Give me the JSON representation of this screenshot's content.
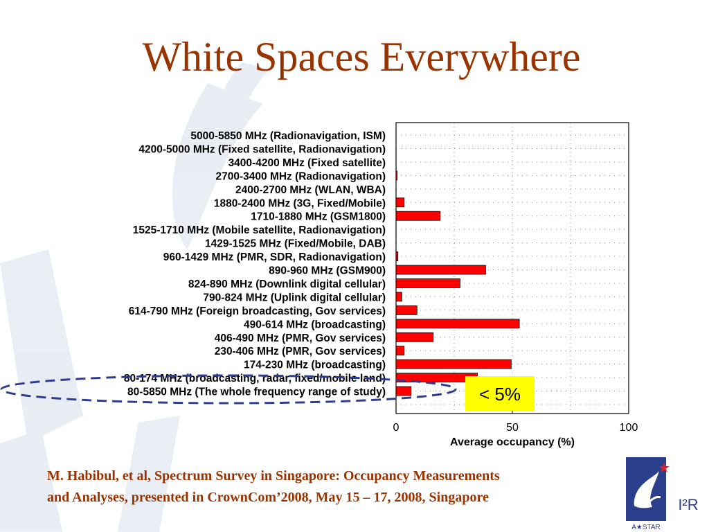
{
  "slide": {
    "title": "White Spaces Everywhere",
    "citation_line1": "M. Habibul, et al, Spectrum Survey in Singapore: Occupancy Measurements",
    "citation_line2": "and Analyses, presented in CrownCom’2008, May 15 – 17, 2008, Singapore",
    "logo_text": "I²R",
    "logo_subtext": "A★STAR",
    "callout_text": "< 5%",
    "colors": {
      "title": "#993300",
      "bar": "#ff0000",
      "callout_bg": "#ffff00",
      "ellipse": "#2e3d8f"
    }
  },
  "chart_data": {
    "type": "bar",
    "orientation": "horizontal",
    "title": "",
    "xlabel": "Average occupancy (%)",
    "ylabel": "",
    "xlim": [
      0,
      100
    ],
    "xticks": [
      "0",
      "50",
      "100"
    ],
    "grid": true,
    "categories": [
      "5000-5850 MHz (Radionavigation, ISM)",
      "4200-5000 MHz (Fixed satellite, Radionavigation)",
      "3400-4200 MHz (Fixed satellite)",
      "2700-3400 MHz (Radionavigation)",
      "2400-2700 MHz (WLAN, WBA)",
      "1880-2400 MHz (3G, Fixed/Mobile)",
      "1710-1880 MHz (GSM1800)",
      "1525-1710 MHz (Mobile satellite, Radionavigation)",
      "1429-1525 MHz (Fixed/Mobile, DAB)",
      "960-1429 MHz (PMR, SDR, Radionavigation)",
      "890-960 MHz (GSM900)",
      "824-890 MHz (Downlink digital cellular)",
      "790-824 MHz (Uplink digital cellular)",
      "614-790 MHz (Foreign broadcasting, Gov services)",
      "490-614 MHz (broadcasting)",
      "406-490 MHz (PMR, Gov services)",
      "230-406 MHz (PMR, Gov services)",
      "174-230 MHz (broadcasting)",
      "80-174 MHz (broadcasting, radar, fixed/mobile land)",
      "80-5850 MHz (The whole frequency range of study)"
    ],
    "values": [
      0,
      0,
      0,
      0.3,
      0,
      3.5,
      19,
      0,
      0,
      0.8,
      38.5,
      27.5,
      2.5,
      9,
      53,
      16,
      3.5,
      49.5,
      35,
      6.5
    ]
  }
}
